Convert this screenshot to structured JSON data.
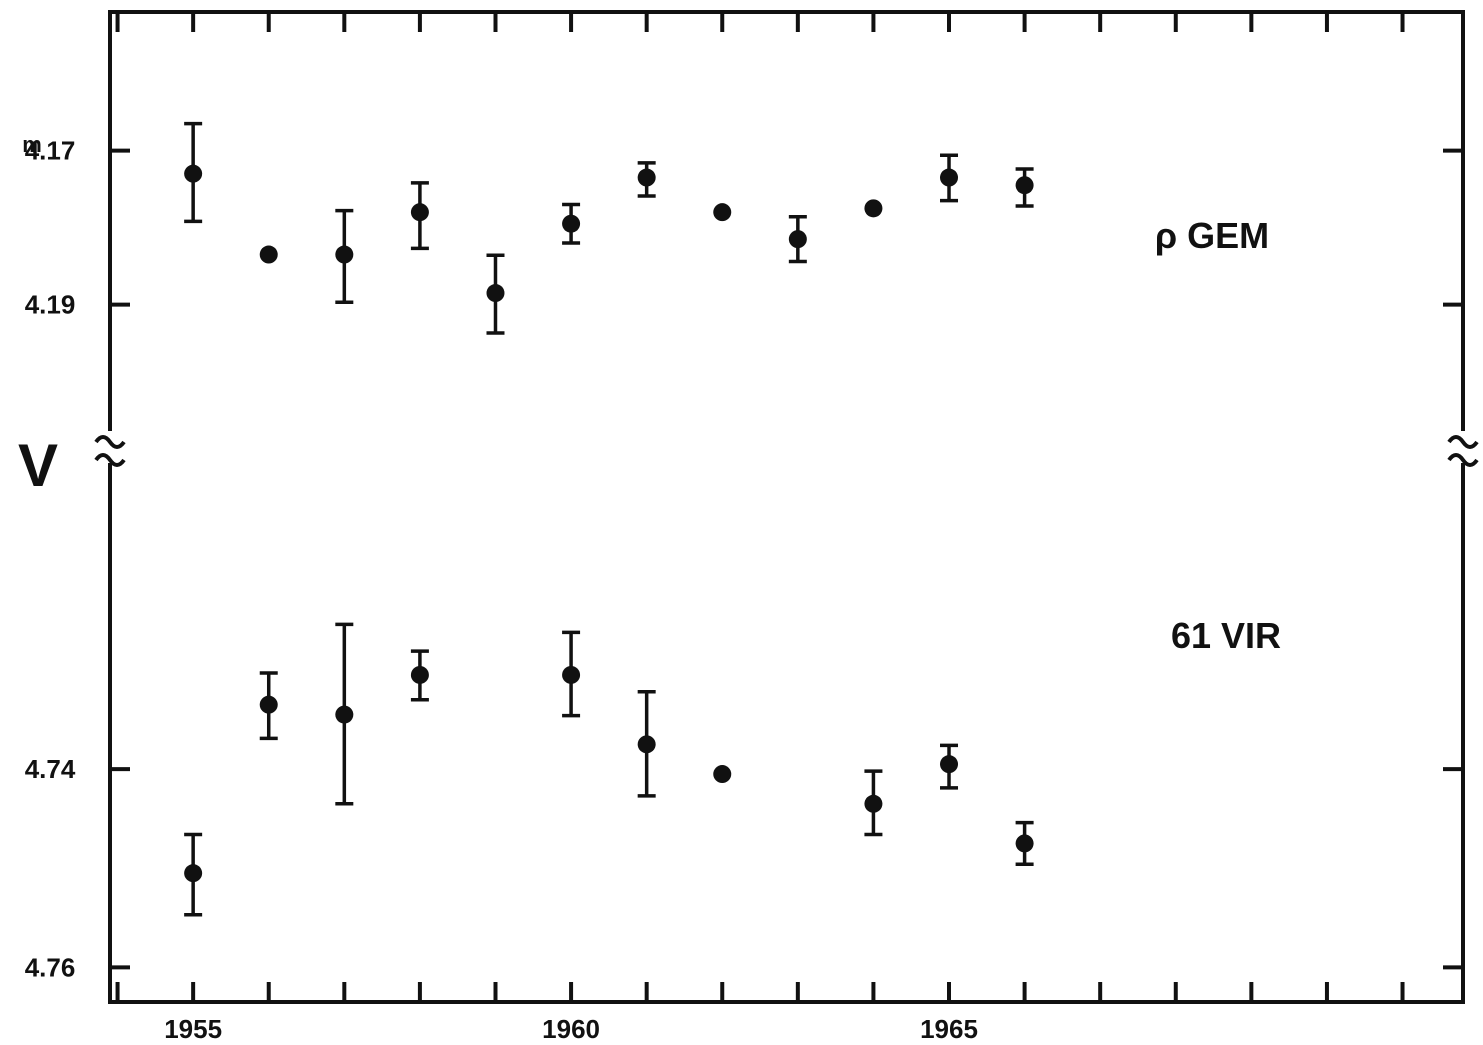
{
  "chart_data": [
    {
      "type": "scatter",
      "title": "",
      "xlabel": "",
      "ylabel": "V",
      "y_unit_superscript": "m",
      "x_ticks": [
        1955,
        1960,
        1965
      ],
      "x_tick_labels": [
        "1955",
        "1960",
        "1965"
      ],
      "xlim": [
        1953.9,
        1971.8
      ],
      "y_inverted": true,
      "ylim": [
        4.152,
        4.2085
      ],
      "y_ticks": [
        4.17,
        4.19
      ],
      "y_tick_labels": [
        "4.17",
        "4.19"
      ],
      "series": [
        {
          "name": "ρ GEM",
          "x": [
            1955,
            1956,
            1957,
            1958,
            1959,
            1960,
            1961,
            1962,
            1963,
            1964,
            1965,
            1966
          ],
          "y": [
            4.173,
            4.1835,
            4.1835,
            4.178,
            4.1885,
            4.1795,
            4.1735,
            4.178,
            4.1815,
            4.1775,
            4.1735,
            4.1745
          ],
          "err_lo": [
            0.0065,
            0,
            0.0057,
            0.0038,
            0.0049,
            0.0025,
            0.0019,
            0,
            0.0029,
            0,
            0.0029,
            0.0021
          ],
          "err_hi": [
            0.0062,
            0,
            0.0062,
            0.0047,
            0.0052,
            0.0025,
            0.0024,
            0,
            0.0029,
            0,
            0.003,
            0.0027
          ]
        }
      ]
    },
    {
      "type": "scatter",
      "x_ticks": [
        1955,
        1960,
        1965
      ],
      "x_tick_labels": [
        "1955",
        "1960",
        "1965"
      ],
      "xlim": [
        1953.9,
        1971.8
      ],
      "y_inverted": true,
      "ylim": [
        4.7075,
        4.7635
      ],
      "y_ticks": [
        4.74,
        4.76
      ],
      "y_tick_labels": [
        "4.74",
        "4.76"
      ],
      "series": [
        {
          "name": "61 VIR",
          "x": [
            1955,
            1956,
            1957,
            1958,
            1960,
            1961,
            1962,
            1964,
            1965,
            1966
          ],
          "y": [
            4.7505,
            4.7335,
            4.7345,
            4.7305,
            4.7305,
            4.7375,
            4.7405,
            4.7435,
            4.7395,
            4.7475
          ],
          "err_lo": [
            0.0039,
            0.0032,
            0.0091,
            0.0024,
            0.0043,
            0.0053,
            0,
            0.0033,
            0.0019,
            0.0021
          ],
          "err_hi": [
            0.0042,
            0.0034,
            0.009,
            0.0025,
            0.0041,
            0.0052,
            0,
            0.0031,
            0.0024,
            0.0021
          ]
        }
      ]
    }
  ]
}
